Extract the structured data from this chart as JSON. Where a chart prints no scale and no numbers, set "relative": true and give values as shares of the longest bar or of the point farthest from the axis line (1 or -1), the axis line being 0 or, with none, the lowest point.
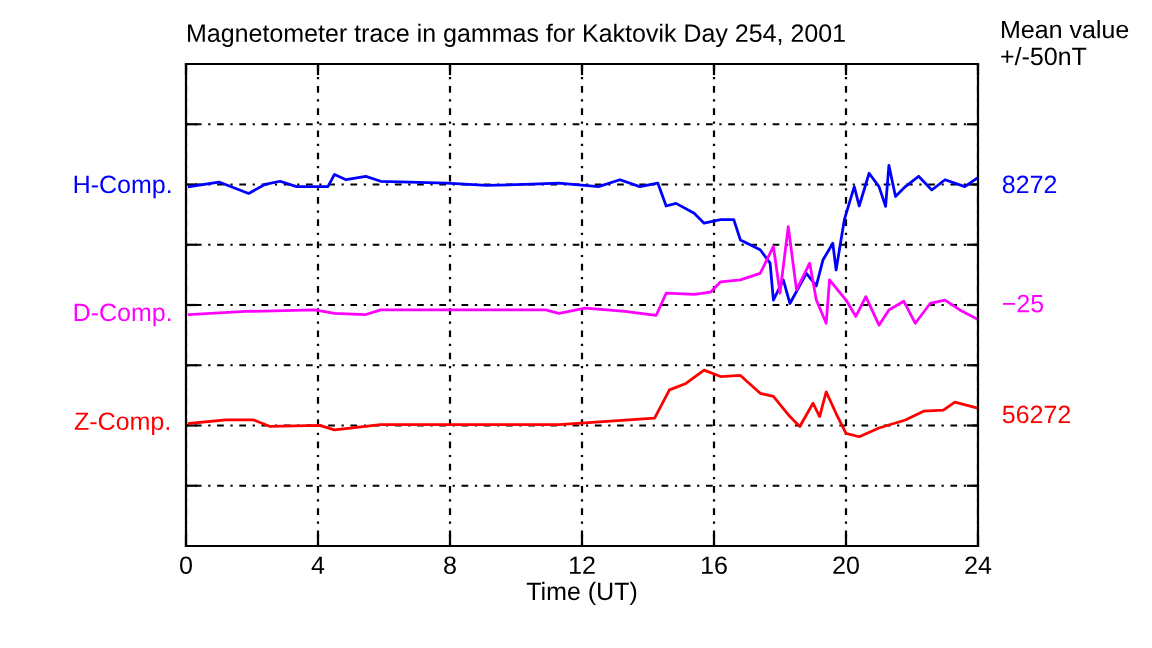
{
  "chart_data": {
    "type": "line",
    "title": "Magnetometer trace in gammas for Kaktovik Day 254, 2001",
    "xlabel": "Time (UT)",
    "relative": true,
    "xlim": [
      0,
      24
    ],
    "xticks": [
      0,
      4,
      8,
      12,
      16,
      20,
      24
    ],
    "grid": true,
    "legend": false,
    "tick_labels": "x",
    "marker": "none",
    "line_style": "solid",
    "series": [
      {
        "name": "H-Comp.",
        "color": "#0000ff",
        "x": [
          0.1,
          1.0,
          1.9,
          2.4,
          2.85,
          3.35,
          4.3,
          4.5,
          4.85,
          5.45,
          5.9,
          7.9,
          9.1,
          10.7,
          11.3,
          12.5,
          13.15,
          13.75,
          14.3,
          14.55,
          14.85,
          15.4,
          15.7,
          16.2,
          16.6,
          16.8,
          17.4,
          17.7,
          17.8,
          18.1,
          18.3,
          18.8,
          19.1,
          19.3,
          19.6,
          19.7,
          19.95,
          20.25,
          20.4,
          20.7,
          21.0,
          21.2,
          21.3,
          21.5,
          21.8,
          22.2,
          22.6,
          23.0,
          23.6,
          23.95
        ],
        "values": [
          0.944,
          0.956,
          0.926,
          0.95,
          0.958,
          0.944,
          0.944,
          0.976,
          0.962,
          0.971,
          0.958,
          0.953,
          0.947,
          0.951,
          0.953,
          0.944,
          0.962,
          0.944,
          0.953,
          0.893,
          0.9,
          0.874,
          0.848,
          0.857,
          0.857,
          0.804,
          0.778,
          0.743,
          0.646,
          0.699,
          0.637,
          0.716,
          0.683,
          0.751,
          0.795,
          0.725,
          0.857,
          0.944,
          0.893,
          0.979,
          0.944,
          0.892,
          1.0,
          0.918,
          0.944,
          0.971,
          0.935,
          0.962,
          0.944,
          0.965
        ]
      },
      {
        "name": "D-Comp.",
        "color": "#ff00ff",
        "x": [
          0.1,
          1.8,
          3.9,
          4.5,
          5.45,
          5.9,
          10.9,
          11.3,
          12.1,
          13.3,
          14.25,
          14.55,
          15.4,
          15.9,
          16.2,
          16.8,
          17.4,
          17.8,
          18.0,
          18.25,
          18.5,
          18.9,
          19.1,
          19.4,
          19.5,
          20.0,
          20.3,
          20.6,
          21.0,
          21.3,
          21.75,
          22.1,
          22.55,
          23.0,
          23.45,
          23.95
        ],
        "values": [
          0.608,
          0.616,
          0.62,
          0.611,
          0.608,
          0.62,
          0.62,
          0.611,
          0.625,
          0.616,
          0.606,
          0.664,
          0.661,
          0.667,
          0.694,
          0.699,
          0.716,
          0.787,
          0.664,
          0.839,
          0.673,
          0.743,
          0.646,
          0.585,
          0.699,
          0.646,
          0.603,
          0.655,
          0.58,
          0.62,
          0.643,
          0.585,
          0.637,
          0.646,
          0.62,
          0.597
        ]
      },
      {
        "name": "Z-Comp.",
        "color": "#ff0000",
        "x": [
          0.1,
          1.2,
          2.05,
          2.55,
          4.05,
          4.5,
          5.9,
          11.3,
          14.2,
          14.65,
          15.15,
          15.7,
          16.2,
          16.8,
          17.4,
          17.8,
          18.3,
          18.6,
          19.0,
          19.2,
          19.4,
          19.7,
          20.0,
          20.4,
          21.0,
          21.8,
          22.35,
          22.95,
          23.3,
          23.95
        ],
        "values": [
          0.322,
          0.331,
          0.331,
          0.314,
          0.317,
          0.305,
          0.319,
          0.319,
          0.336,
          0.41,
          0.427,
          0.462,
          0.445,
          0.448,
          0.401,
          0.393,
          0.34,
          0.314,
          0.375,
          0.34,
          0.405,
          0.348,
          0.296,
          0.287,
          0.31,
          0.331,
          0.354,
          0.357,
          0.378,
          0.363
        ]
      }
    ],
    "annotations": [
      "Mean value\n+/-50nT",
      "8272",
      "−25",
      "56272"
    ]
  }
}
